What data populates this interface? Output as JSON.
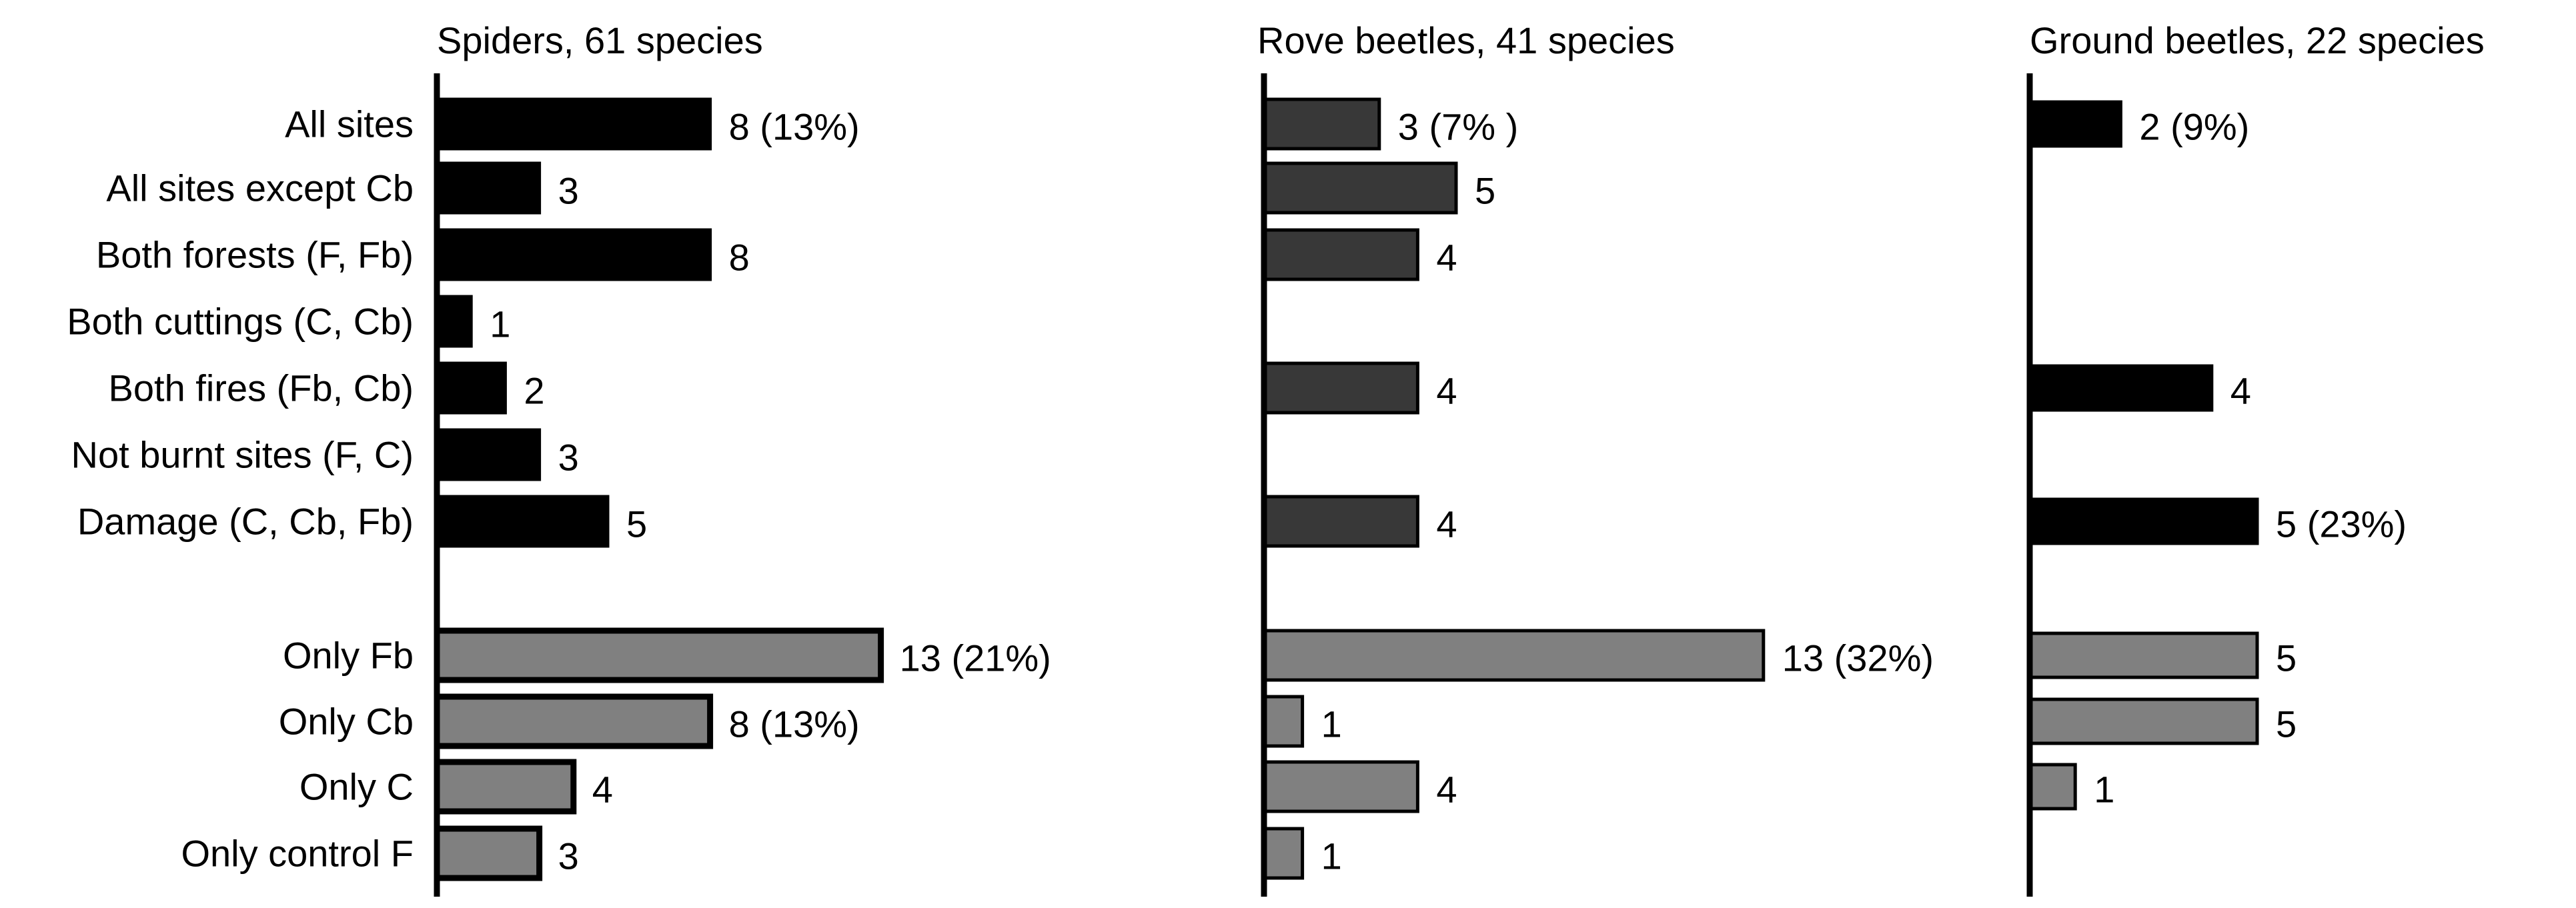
{
  "chart_data": {
    "type": "bar",
    "orientation": "horizontal",
    "categories": [
      "All sites",
      "All sites except Cb",
      "Both forests (F, Fb)",
      "Both cuttings (C, Cb)",
      "Both fires (Fb, Cb)",
      "Not burnt sites (F, C)",
      "Damage (C, Cb, Fb)",
      "Only Fb",
      "Only Cb",
      "Only C",
      "Only control F"
    ],
    "group_colors": {
      "shared": "#000000",
      "only": "#808080",
      "rove_shared": "#383838",
      "edge": "#000000"
    },
    "panels": [
      {
        "title": "Spiders, 61 species",
        "shared_color": "#000000",
        "values": [
          8,
          3,
          8,
          1,
          2,
          3,
          5,
          13,
          8,
          4,
          3
        ],
        "labels": [
          "8 (13%)",
          "3",
          "8",
          "1",
          "2",
          "3",
          "5",
          "13 (21%)",
          "8 (13%)",
          "4",
          "3"
        ]
      },
      {
        "title": "Rove beetles, 41 species",
        "shared_color": "#383838",
        "values": [
          3,
          5,
          4,
          null,
          4,
          null,
          4,
          13,
          1,
          4,
          1
        ],
        "labels": [
          "3 (7% )",
          "5",
          "4",
          "",
          "4",
          "",
          "4",
          "13 (32%)",
          "1",
          "4",
          "1"
        ]
      },
      {
        "title": "Ground beetles, 22 species",
        "shared_color": "#000000",
        "values": [
          2,
          null,
          null,
          null,
          4,
          null,
          5,
          5,
          5,
          1,
          null
        ],
        "labels": [
          "2 (9%)",
          "",
          "",
          "",
          "4",
          "",
          "5 (23%)",
          "5",
          "5",
          "1",
          ""
        ]
      }
    ]
  }
}
